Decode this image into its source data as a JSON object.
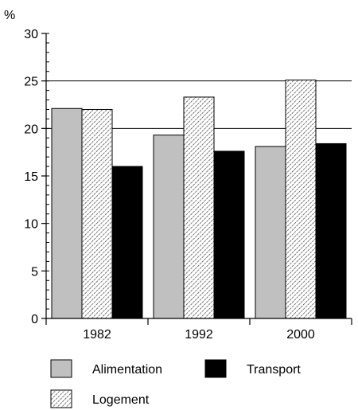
{
  "chart_data": {
    "type": "bar",
    "ylabel": "%",
    "ylim": [
      0,
      30
    ],
    "yticks": [
      "0",
      "5",
      "10",
      "15",
      "20",
      "25",
      "30"
    ],
    "y_minor_step": 1,
    "grid_lines": [
      20,
      25
    ],
    "categories": [
      "1982",
      "1992",
      "2000"
    ],
    "series": [
      {
        "name": "Alimentation",
        "values": [
          22.1,
          19.3,
          18.1
        ],
        "color": "#c0c0c0",
        "pattern": "solid"
      },
      {
        "name": "Logement",
        "values": [
          22.0,
          23.3,
          25.1
        ],
        "color": "#ffffff",
        "pattern": "hatch"
      },
      {
        "name": "Transport",
        "values": [
          16.0,
          17.6,
          18.4
        ],
        "color": "#000000",
        "pattern": "solid"
      }
    ],
    "legend_placement": "bottom"
  }
}
